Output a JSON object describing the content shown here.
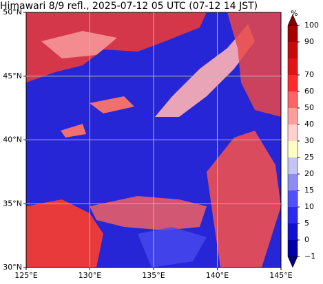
{
  "map": {
    "title": "Himawari 8/9 refl., 2025-07-12 05 UTC (07-12 14 JST)",
    "xlim": [
      125,
      145
    ],
    "ylim": [
      30,
      50
    ],
    "xticks": [
      {
        "value": 125,
        "label": "125°E"
      },
      {
        "value": 130,
        "label": "130°E"
      },
      {
        "value": 135,
        "label": "135°E"
      },
      {
        "value": 140,
        "label": "140°E"
      },
      {
        "value": 145,
        "label": "145°E"
      }
    ],
    "yticks": [
      {
        "value": 30,
        "label": "30°N"
      },
      {
        "value": 35,
        "label": "35°N"
      },
      {
        "value": 40,
        "label": "40°N"
      },
      {
        "value": 45,
        "label": "45°N"
      },
      {
        "value": 50,
        "label": "50°N"
      }
    ],
    "grid": true,
    "colorbar": {
      "unit": "%",
      "levels": [
        {
          "value": -1,
          "label": "−1"
        },
        0,
        5,
        10,
        15,
        20,
        25,
        30,
        40,
        50,
        60,
        70,
        80,
        90,
        100
      ],
      "labeled": [
        true,
        true,
        true,
        true,
        true,
        true,
        true,
        true,
        true,
        true,
        true,
        true,
        false,
        true,
        true
      ],
      "colors": [
        "#0000a8",
        "#1010d0",
        "#2a2af0",
        "#5050ff",
        "#8c8cf2",
        "#c4c4f4",
        "#ffffc4",
        "#ffd0d0",
        "#ff9c9c",
        "#ff6464",
        "#ff2a2a",
        "#e01414",
        "#c80a0a",
        "#a80000"
      ],
      "under_color": "#000080",
      "over_color": "#800000"
    }
  }
}
